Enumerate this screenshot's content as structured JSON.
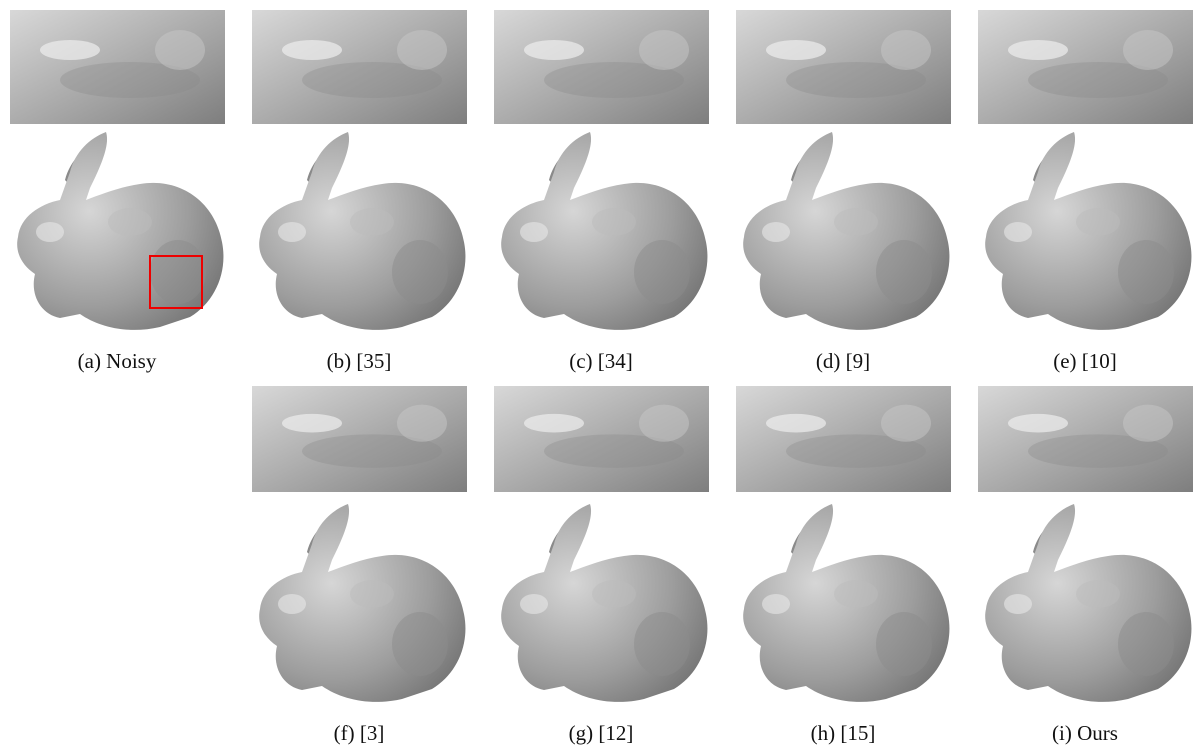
{
  "panels": [
    {
      "caption": "(a) Noisy"
    },
    {
      "caption": "(b) [35]"
    },
    {
      "caption": "(c) [34]"
    },
    {
      "caption": "(d) [9]"
    },
    {
      "caption": "(e) [10]"
    },
    {
      "caption": "(f) [3]"
    },
    {
      "caption": "(g) [12]"
    },
    {
      "caption": "(h) [15]"
    },
    {
      "caption": "(i) Ours"
    }
  ]
}
